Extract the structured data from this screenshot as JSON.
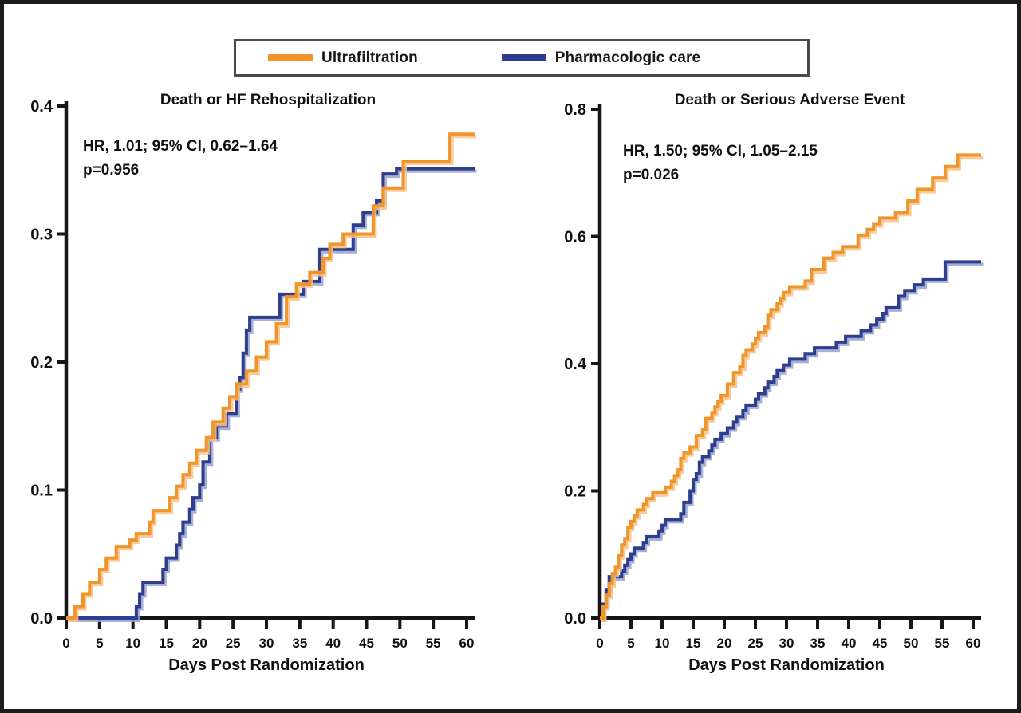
{
  "legend": {
    "items": [
      {
        "label": "Ultrafiltration",
        "color": "#F0952B",
        "halo_color": "#F6C289"
      },
      {
        "label": "Pharmacologic care",
        "color": "#2E3D8D",
        "halo_color": "#97A1CC"
      }
    ]
  },
  "chart_data": [
    {
      "type": "line",
      "step": true,
      "title": "Death or HF Rehospitalization",
      "annotation_lines": [
        "HR, 1.01; 95% CI, 0.62–1.64",
        "p=0.956"
      ],
      "xlabel": "Days Post Randomization",
      "ylabel": "",
      "xlim": [
        0,
        60
      ],
      "ylim": [
        0,
        0.4
      ],
      "xticks": [
        "0",
        "5",
        "10",
        "15",
        "20",
        "25",
        "30",
        "35",
        "40",
        "45",
        "50",
        "55",
        "60"
      ],
      "yticks": [
        "0.0",
        "0.1",
        "0.2",
        "0.3",
        "0.4"
      ],
      "grid": false,
      "legend_position": "top-center-shared",
      "series": [
        {
          "name": "Ultrafiltration",
          "points": [
            [
              0,
              0
            ],
            [
              1.3,
              0.009
            ],
            [
              2.5,
              0.019
            ],
            [
              3.5,
              0.028
            ],
            [
              5,
              0.038
            ],
            [
              6,
              0.047
            ],
            [
              7.5,
              0.056
            ],
            [
              9.5,
              0.061
            ],
            [
              10.5,
              0.066
            ],
            [
              12.5,
              0.075
            ],
            [
              13,
              0.084
            ],
            [
              15.5,
              0.094
            ],
            [
              16.5,
              0.103
            ],
            [
              17.5,
              0.112
            ],
            [
              18.5,
              0.121
            ],
            [
              19.5,
              0.131
            ],
            [
              21,
              0.141
            ],
            [
              22,
              0.153
            ],
            [
              23.5,
              0.164
            ],
            [
              24.5,
              0.173
            ],
            [
              25.5,
              0.183
            ],
            [
              27,
              0.193
            ],
            [
              28.5,
              0.204
            ],
            [
              30,
              0.216
            ],
            [
              31.5,
              0.23
            ],
            [
              33,
              0.251
            ],
            [
              34.5,
              0.261
            ],
            [
              36.5,
              0.27
            ],
            [
              38.5,
              0.281
            ],
            [
              39.5,
              0.292
            ],
            [
              41.5,
              0.3
            ],
            [
              46,
              0.322
            ],
            [
              47.5,
              0.336
            ],
            [
              50.5,
              0.357
            ],
            [
              57.5,
              0.378
            ],
            [
              60,
              0.378
            ]
          ]
        },
        {
          "name": "Pharmacologic care",
          "points": [
            [
              0,
              0
            ],
            [
              10.5,
              0.009
            ],
            [
              11,
              0.019
            ],
            [
              11.5,
              0.028
            ],
            [
              14.5,
              0.038
            ],
            [
              15,
              0.047
            ],
            [
              16.5,
              0.057
            ],
            [
              17,
              0.066
            ],
            [
              17.5,
              0.075
            ],
            [
              18.5,
              0.085
            ],
            [
              19,
              0.094
            ],
            [
              20,
              0.104
            ],
            [
              20.5,
              0.122
            ],
            [
              21.5,
              0.141
            ],
            [
              22.5,
              0.15
            ],
            [
              24,
              0.16
            ],
            [
              25.5,
              0.179
            ],
            [
              26,
              0.188
            ],
            [
              26.5,
              0.207
            ],
            [
              27,
              0.225
            ],
            [
              27.5,
              0.235
            ],
            [
              32,
              0.253
            ],
            [
              35.5,
              0.263
            ],
            [
              38,
              0.288
            ],
            [
              43,
              0.307
            ],
            [
              44.5,
              0.317
            ],
            [
              46.5,
              0.326
            ],
            [
              47.5,
              0.347
            ],
            [
              49.5,
              0.351
            ],
            [
              60,
              0.351
            ]
          ]
        }
      ]
    },
    {
      "type": "line",
      "step": true,
      "title": "Death or Serious Adverse Event",
      "annotation_lines": [
        "HR, 1.50; 95% CI, 1.05–2.15",
        "p=0.026"
      ],
      "xlabel": "Days Post Randomization",
      "ylabel": "",
      "xlim": [
        0,
        60
      ],
      "ylim": [
        0,
        0.8
      ],
      "xticks": [
        "0",
        "5",
        "10",
        "15",
        "20",
        "25",
        "30",
        "35",
        "40",
        "45",
        "50",
        "55",
        "60"
      ],
      "yticks": [
        "0.0",
        "0.2",
        "0.4",
        "0.6",
        "0.8"
      ],
      "grid": false,
      "legend_position": "top-center-shared",
      "series": [
        {
          "name": "Ultrafiltration",
          "points": [
            [
              0,
              0
            ],
            [
              0.5,
              0.018
            ],
            [
              1,
              0.036
            ],
            [
              1.5,
              0.054
            ],
            [
              2,
              0.07
            ],
            [
              2.5,
              0.08
            ],
            [
              3,
              0.098
            ],
            [
              3.5,
              0.115
            ],
            [
              4,
              0.125
            ],
            [
              4.5,
              0.143
            ],
            [
              5,
              0.152
            ],
            [
              5.5,
              0.161
            ],
            [
              6,
              0.17
            ],
            [
              7,
              0.179
            ],
            [
              7.5,
              0.188
            ],
            [
              8.5,
              0.197
            ],
            [
              10.5,
              0.206
            ],
            [
              11.5,
              0.215
            ],
            [
              12,
              0.224
            ],
            [
              12.5,
              0.233
            ],
            [
              13,
              0.251
            ],
            [
              13.5,
              0.26
            ],
            [
              14.5,
              0.269
            ],
            [
              15.5,
              0.287
            ],
            [
              16.5,
              0.296
            ],
            [
              17,
              0.314
            ],
            [
              18,
              0.323
            ],
            [
              18.5,
              0.332
            ],
            [
              19,
              0.341
            ],
            [
              19.5,
              0.35
            ],
            [
              20.5,
              0.368
            ],
            [
              21.5,
              0.386
            ],
            [
              22.5,
              0.395
            ],
            [
              23,
              0.413
            ],
            [
              23.5,
              0.422
            ],
            [
              24.5,
              0.431
            ],
            [
              25,
              0.44
            ],
            [
              25.5,
              0.449
            ],
            [
              26.5,
              0.458
            ],
            [
              27,
              0.476
            ],
            [
              27.5,
              0.485
            ],
            [
              28.5,
              0.494
            ],
            [
              29,
              0.503
            ],
            [
              29.5,
              0.512
            ],
            [
              30.5,
              0.521
            ],
            [
              33,
              0.53
            ],
            [
              34,
              0.548
            ],
            [
              36,
              0.566
            ],
            [
              37.5,
              0.575
            ],
            [
              39,
              0.584
            ],
            [
              41.5,
              0.602
            ],
            [
              43,
              0.611
            ],
            [
              44,
              0.62
            ],
            [
              45,
              0.629
            ],
            [
              47.5,
              0.638
            ],
            [
              49.5,
              0.656
            ],
            [
              51,
              0.674
            ],
            [
              53.5,
              0.692
            ],
            [
              55.5,
              0.71
            ],
            [
              57.5,
              0.728
            ],
            [
              60,
              0.728
            ]
          ]
        },
        {
          "name": "Pharmacologic care",
          "points": [
            [
              0,
              0
            ],
            [
              0.5,
              0.022
            ],
            [
              1,
              0.045
            ],
            [
              1.5,
              0.065
            ],
            [
              3.5,
              0.074
            ],
            [
              4,
              0.083
            ],
            [
              4.5,
              0.092
            ],
            [
              5,
              0.101
            ],
            [
              5.5,
              0.11
            ],
            [
              7,
              0.119
            ],
            [
              7.5,
              0.128
            ],
            [
              9.5,
              0.137
            ],
            [
              10,
              0.146
            ],
            [
              10.5,
              0.155
            ],
            [
              13,
              0.164
            ],
            [
              13.5,
              0.182
            ],
            [
              14.5,
              0.2
            ],
            [
              15,
              0.218
            ],
            [
              15.5,
              0.227
            ],
            [
              16,
              0.245
            ],
            [
              16.5,
              0.254
            ],
            [
              17.5,
              0.263
            ],
            [
              18,
              0.272
            ],
            [
              18.5,
              0.281
            ],
            [
              19.5,
              0.29
            ],
            [
              20.5,
              0.299
            ],
            [
              21.5,
              0.308
            ],
            [
              22,
              0.317
            ],
            [
              23,
              0.326
            ],
            [
              23.5,
              0.335
            ],
            [
              25,
              0.344
            ],
            [
              25.5,
              0.353
            ],
            [
              26.5,
              0.362
            ],
            [
              27,
              0.371
            ],
            [
              28,
              0.38
            ],
            [
              28.5,
              0.389
            ],
            [
              29.5,
              0.398
            ],
            [
              30.5,
              0.407
            ],
            [
              33,
              0.416
            ],
            [
              34.5,
              0.425
            ],
            [
              38,
              0.434
            ],
            [
              39.5,
              0.443
            ],
            [
              42,
              0.452
            ],
            [
              43.5,
              0.461
            ],
            [
              44.5,
              0.47
            ],
            [
              45.5,
              0.479
            ],
            [
              46,
              0.488
            ],
            [
              48,
              0.506
            ],
            [
              49,
              0.515
            ],
            [
              50.5,
              0.524
            ],
            [
              52,
              0.533
            ],
            [
              55.5,
              0.56
            ],
            [
              60,
              0.56
            ]
          ]
        }
      ]
    }
  ]
}
